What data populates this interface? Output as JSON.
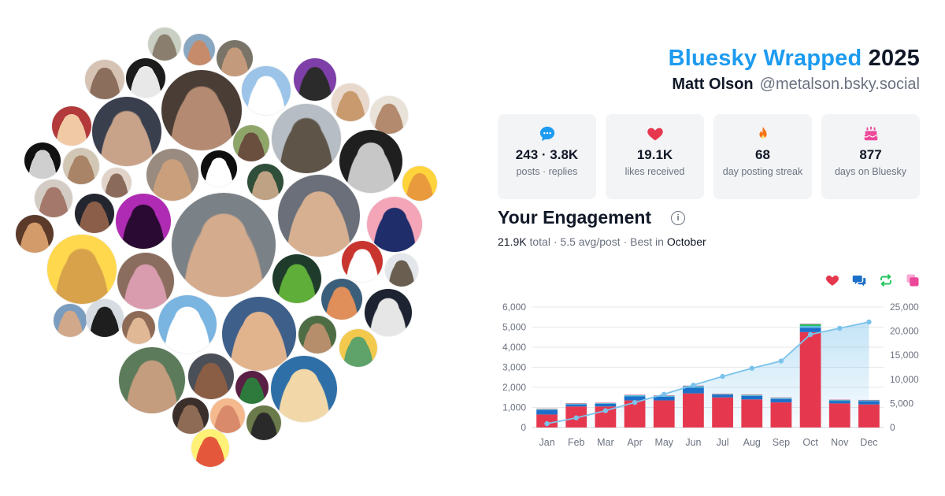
{
  "header": {
    "brand": "Bluesky Wrapped",
    "year": "2025",
    "name": "Matt Olson",
    "handle": "@metalson.bsky.social"
  },
  "stats": [
    {
      "value": "243 · 3.8K",
      "label": "posts · replies",
      "icon": "speech-bubble-icon",
      "color": "#1d9bf0"
    },
    {
      "value": "19.1K",
      "label": "likes received",
      "icon": "heart-icon",
      "color": "#e5384f"
    },
    {
      "value": "68",
      "label": "day posting streak",
      "icon": "flame-icon",
      "color": "#f97316"
    },
    {
      "value": "877",
      "label": "days on Bluesky",
      "icon": "cake-icon",
      "color": "#ec4899"
    }
  ],
  "engagement": {
    "title": "Your Engagement",
    "total_value": "21.9K",
    "total_word": "total",
    "avg": "5.5 avg/post",
    "best_prefix": "Best in",
    "best_month": "October"
  },
  "legend": [
    {
      "icon": "heart-icon",
      "color": "#e5384f"
    },
    {
      "icon": "reply-icon",
      "color": "#1d70c9"
    },
    {
      "icon": "repost-icon",
      "color": "#22c55e"
    },
    {
      "icon": "quote-icon",
      "color": "#ec4899"
    }
  ],
  "avatars": [
    {
      "name": "avatar-1",
      "bg": "#c9cfc2",
      "fg": "#8a7f6e"
    },
    {
      "name": "avatar-2",
      "bg": "#8aa7c2",
      "fg": "#c58b6a"
    },
    {
      "name": "avatar-3",
      "bg": "#7a7468",
      "fg": "#c49a7c"
    },
    {
      "name": "avatar-4",
      "bg": "#d7c3b3",
      "fg": "#8b6e5c"
    },
    {
      "name": "avatar-5",
      "bg": "#1c1c1c",
      "fg": "#e8e8e8"
    },
    {
      "name": "avatar-6",
      "bg": "#4a3d35",
      "fg": "#b48b72"
    },
    {
      "name": "avatar-7",
      "bg": "#9bc4e8",
      "fg": "#ffffff"
    },
    {
      "name": "avatar-8",
      "bg": "#7f3fa8",
      "fg": "#2b2b2b"
    },
    {
      "name": "avatar-9",
      "bg": "#e9d9cc",
      "fg": "#c89a6e"
    },
    {
      "name": "avatar-10",
      "bg": "#e8e2d8",
      "fg": "#b38a6d"
    },
    {
      "name": "avatar-11",
      "bg": "#b23a3a",
      "fg": "#f1c9a5"
    },
    {
      "name": "avatar-12",
      "bg": "#3a3f4e",
      "fg": "#c8a38a"
    },
    {
      "name": "avatar-13",
      "bg": "#8fa66b",
      "fg": "#6b4f3e"
    },
    {
      "name": "avatar-14",
      "bg": "#b6bdc4",
      "fg": "#5e5448"
    },
    {
      "name": "avatar-15",
      "bg": "#111111",
      "fg": "#cfcfcf"
    },
    {
      "name": "avatar-16",
      "bg": "#d2c7b5",
      "fg": "#a98467"
    },
    {
      "name": "avatar-17",
      "bg": "#e2d3c8",
      "fg": "#8a6a5a"
    },
    {
      "name": "avatar-18",
      "bg": "#9a8b80",
      "fg": "#caa07c"
    },
    {
      "name": "avatar-19",
      "bg": "#0f0f0f",
      "fg": "#ffffff"
    },
    {
      "name": "avatar-20",
      "bg": "#2f4f3a",
      "fg": "#bfa184"
    },
    {
      "name": "avatar-21",
      "bg": "#6a6f79",
      "fg": "#d7b092"
    },
    {
      "name": "avatar-22",
      "bg": "#1f1f1f",
      "fg": "#c7c7c7"
    },
    {
      "name": "avatar-23",
      "bg": "#ffd43b",
      "fg": "#e89a3c"
    },
    {
      "name": "avatar-24",
      "bg": "#d3ccc4",
      "fg": "#a4786a"
    },
    {
      "name": "avatar-25",
      "bg": "#23262e",
      "fg": "#8b5e4a"
    },
    {
      "name": "avatar-26",
      "bg": "#b02bb3",
      "fg": "#2a0a33"
    },
    {
      "name": "avatar-27",
      "bg": "#7a8187",
      "fg": "#d4ab8d"
    },
    {
      "name": "avatar-28",
      "bg": "#f4a6b8",
      "fg": "#1f2d6b"
    },
    {
      "name": "avatar-29",
      "bg": "#5b3a2a",
      "fg": "#d39b6a"
    },
    {
      "name": "avatar-30",
      "bg": "#ffd84d",
      "fg": "#d8a24a"
    },
    {
      "name": "avatar-31",
      "bg": "#8a6d5e",
      "fg": "#d99cae"
    },
    {
      "name": "avatar-32",
      "bg": "#1f3b2b",
      "fg": "#5fae3a"
    },
    {
      "name": "avatar-33",
      "bg": "#c8352e",
      "fg": "#ffffff"
    },
    {
      "name": "avatar-34",
      "bg": "#e3e6ea",
      "fg": "#6a5e50"
    },
    {
      "name": "avatar-35",
      "bg": "#3b5f7a",
      "fg": "#e08e5a"
    },
    {
      "name": "avatar-36",
      "bg": "#7a9cbf",
      "fg": "#d1a88a"
    },
    {
      "name": "avatar-37",
      "bg": "#d6dce2",
      "fg": "#1e1e1e"
    },
    {
      "name": "avatar-38",
      "bg": "#8d6a55",
      "fg": "#e0b896"
    },
    {
      "name": "avatar-39",
      "bg": "#7ab4e0",
      "fg": "#ffffff"
    },
    {
      "name": "avatar-40",
      "bg": "#3e5f8a",
      "fg": "#e2b48e"
    },
    {
      "name": "avatar-41",
      "bg": "#4e6d45",
      "fg": "#b68e6b"
    },
    {
      "name": "avatar-42",
      "bg": "#1d2330",
      "fg": "#e6e6e6"
    },
    {
      "name": "avatar-43",
      "bg": "#f2c94c",
      "fg": "#5fa36a"
    },
    {
      "name": "avatar-44",
      "bg": "#5c7b5a",
      "fg": "#c49c7e"
    },
    {
      "name": "avatar-45",
      "bg": "#4b4f57",
      "fg": "#8a5e44"
    },
    {
      "name": "avatar-46",
      "bg": "#5a1f44",
      "fg": "#2d7a3c"
    },
    {
      "name": "avatar-47",
      "bg": "#2f6fa8",
      "fg": "#f2d8a8"
    },
    {
      "name": "avatar-48",
      "bg": "#3b2f2b",
      "fg": "#8e6b55"
    },
    {
      "name": "avatar-49",
      "bg": "#f5b98e",
      "fg": "#d98a6a"
    },
    {
      "name": "avatar-50",
      "bg": "#6b7a4a",
      "fg": "#2a2a2a"
    },
    {
      "name": "avatar-51",
      "bg": "#fff176",
      "fg": "#e5573a"
    },
    {
      "name": "avatar-52",
      "bg": "#a7a099",
      "fg": "#6e4a3b"
    },
    {
      "name": "avatar-53",
      "bg": "#c9a77e",
      "fg": "#5a3a2a"
    }
  ],
  "chart_data": {
    "type": "bar",
    "categories": [
      "Jan",
      "Feb",
      "Mar",
      "Apr",
      "May",
      "Jun",
      "Jul",
      "Aug",
      "Sep",
      "Oct",
      "Nov",
      "Dec"
    ],
    "stacked": true,
    "y_left": {
      "min": 0,
      "max": 6000,
      "ticks": [
        "0",
        "1,000",
        "2,000",
        "3,000",
        "4,000",
        "5,000",
        "6,000"
      ]
    },
    "y_right": {
      "min": 0,
      "max": 25000,
      "ticks": [
        "0",
        "5,000",
        "10,000",
        "15,000",
        "20,000",
        "25,000"
      ]
    },
    "series": [
      {
        "kind": "bar",
        "color": "#e5384f",
        "values": [
          650,
          1050,
          1050,
          1350,
          1350,
          1700,
          1500,
          1400,
          1250,
          4750,
          1200,
          1150
        ]
      },
      {
        "kind": "bar",
        "color": "#1d70c9",
        "values": [
          220,
          100,
          130,
          200,
          180,
          280,
          130,
          170,
          170,
          220,
          130,
          160
        ]
      },
      {
        "kind": "bar",
        "color": "#5bc0de",
        "values": [
          50,
          40,
          40,
          60,
          50,
          80,
          40,
          50,
          60,
          90,
          40,
          50
        ]
      },
      {
        "kind": "bar",
        "color": "#22c55e",
        "values": [
          10,
          10,
          10,
          15,
          10,
          20,
          10,
          15,
          10,
          90,
          10,
          10
        ]
      },
      {
        "kind": "bar",
        "color": "#ec4899",
        "values": [
          5,
          5,
          5,
          5,
          5,
          5,
          5,
          5,
          5,
          20,
          5,
          5
        ]
      },
      {
        "kind": "cumulative-line",
        "axis": "right",
        "color": "#7cc3ec",
        "values": [
          800,
          2000,
          3500,
          5200,
          6900,
          8800,
          10600,
          12300,
          13800,
          19300,
          20600,
          21900
        ]
      }
    ],
    "grid": true
  }
}
